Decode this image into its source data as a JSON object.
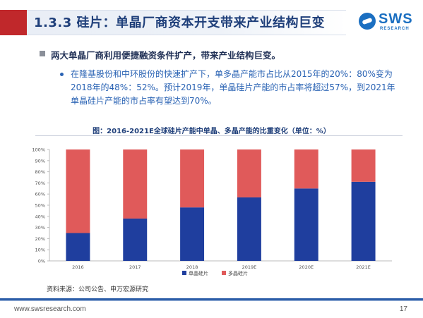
{
  "header": {
    "title": "1.3.3 硅片：单晶厂商资本开支带来产业结构巨变",
    "accent_color": "#c0282b",
    "title_color": "#1f3f7a"
  },
  "logo": {
    "text": "SWS",
    "subtext": "RESEARCH",
    "color": "#1b6fc1"
  },
  "bullets": {
    "main": "两大单晶厂商利用便捷融资条件扩产，带来产业结构巨变。",
    "sub": "在隆基股份和中环股份的快速扩产下，单多晶产能市占比从2015年的20%：80%变为2018年的48%：52%。预计2019年，单晶硅片产能的市占率将超过57%，到2021年单晶硅片产能的市占率有望达到70%。"
  },
  "chart_data": {
    "type": "bar",
    "stacked": true,
    "title": "图：2016-2021E全球硅片产能中单晶、多晶产能的比重变化（单位：%）",
    "categories": [
      "2016",
      "2017",
      "2018",
      "2019E",
      "2020E",
      "2021E"
    ],
    "series": [
      {
        "name": "单晶硅片",
        "color": "#1f3e9e",
        "values": [
          25,
          38,
          48,
          57,
          65,
          71
        ]
      },
      {
        "name": "多晶硅片",
        "color": "#e05a5a",
        "values": [
          75,
          62,
          52,
          43,
          35,
          29
        ]
      }
    ],
    "yticks": [
      "0%",
      "10%",
      "20%",
      "30%",
      "40%",
      "50%",
      "60%",
      "70%",
      "80%",
      "90%",
      "100%"
    ],
    "ylim": [
      0,
      100
    ],
    "legend_position": "bottom",
    "grid": false
  },
  "source": "资料来源：公司公告、申万宏源研究",
  "footer": {
    "url": "www.swsresearch.com",
    "page": "17"
  }
}
